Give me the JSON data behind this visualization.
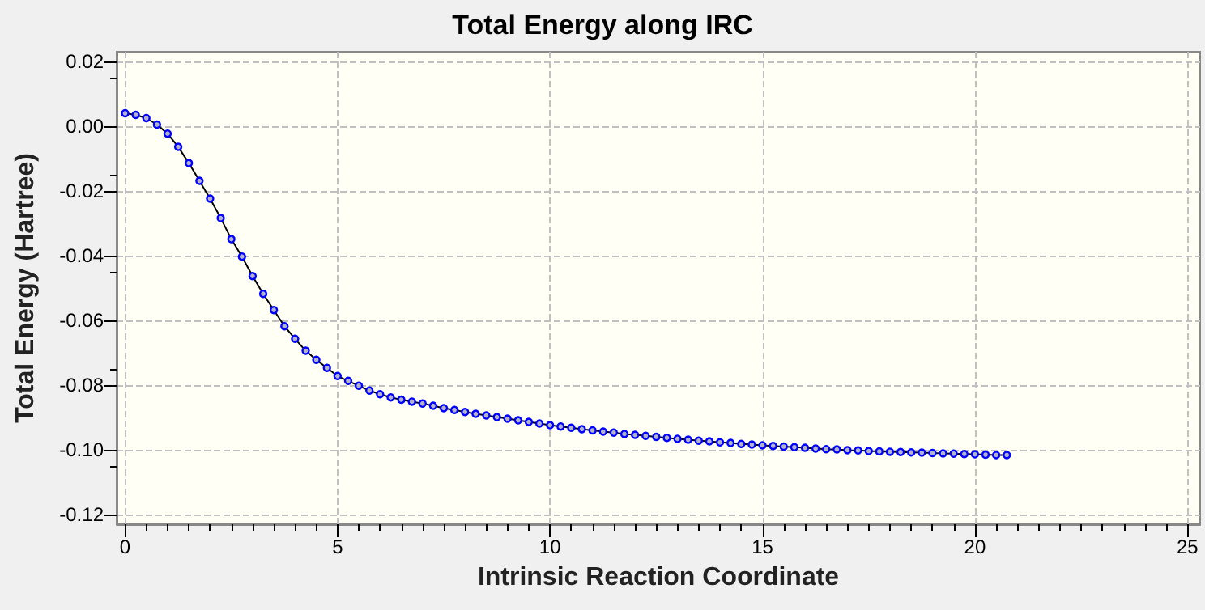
{
  "chart_data": {
    "type": "line",
    "title": "Total Energy along IRC",
    "xlabel": "Intrinsic Reaction Coordinate",
    "ylabel": "Total Energy (Hartree)",
    "x": [
      0,
      0.25,
      0.5,
      0.75,
      1,
      1.25,
      1.5,
      1.75,
      2,
      2.25,
      2.5,
      2.75,
      3,
      3.25,
      3.5,
      3.75,
      4,
      4.25,
      4.5,
      4.75,
      5,
      5.25,
      5.5,
      5.75,
      6,
      6.25,
      6.5,
      6.75,
      7,
      7.25,
      7.5,
      7.75,
      8,
      8.25,
      8.5,
      8.75,
      9,
      9.25,
      9.5,
      9.75,
      10,
      10.25,
      10.5,
      10.75,
      11,
      11.25,
      11.5,
      11.75,
      12,
      12.25,
      12.5,
      12.75,
      13,
      13.25,
      13.5,
      13.75,
      14,
      14.25,
      14.5,
      14.75,
      15,
      15.25,
      15.5,
      15.75,
      16,
      16.25,
      16.5,
      16.75,
      17,
      17.25,
      17.5,
      17.75,
      18,
      18.25,
      18.5,
      18.75,
      19,
      19.25,
      19.5,
      19.75,
      20,
      20.25,
      20.5,
      20.75
    ],
    "series": [
      {
        "color": "#0000ff",
        "values": [
          0.004,
          0.0035,
          0.0025,
          0.0005,
          -0.0023,
          -0.0064,
          -0.0114,
          -0.0169,
          -0.0224,
          -0.0284,
          -0.0349,
          -0.0403,
          -0.0463,
          -0.0518,
          -0.0568,
          -0.0618,
          -0.0657,
          -0.0694,
          -0.0722,
          -0.0747,
          -0.0772,
          -0.0787,
          -0.0802,
          -0.0817,
          -0.0828,
          -0.0838,
          -0.0845,
          -0.0851,
          -0.0857,
          -0.0864,
          -0.0871,
          -0.0877,
          -0.0883,
          -0.0889,
          -0.0894,
          -0.0899,
          -0.0904,
          -0.0909,
          -0.0914,
          -0.0919,
          -0.0924,
          -0.0928,
          -0.0932,
          -0.0936,
          -0.094,
          -0.0944,
          -0.0947,
          -0.0951,
          -0.0954,
          -0.0957,
          -0.096,
          -0.0963,
          -0.0966,
          -0.0969,
          -0.0972,
          -0.0974,
          -0.0977,
          -0.0979,
          -0.0982,
          -0.0984,
          -0.0986,
          -0.0988,
          -0.099,
          -0.0992,
          -0.0994,
          -0.0996,
          -0.0998,
          -0.0999,
          -0.1001,
          -0.1002,
          -0.1004,
          -0.1005,
          -0.1006,
          -0.1007,
          -0.1008,
          -0.1009,
          -0.101,
          -0.1011,
          -0.1012,
          -0.1013,
          -0.1014,
          -0.1015,
          -0.1016,
          -0.1016
        ]
      }
    ],
    "xlim": [
      -0.2,
      25.3
    ],
    "ylim": [
      -0.123,
      0.023
    ],
    "xticks": [
      0,
      5,
      10,
      15,
      20,
      25
    ],
    "yticks": [
      {
        "value": 0.02,
        "label": "0.02"
      },
      {
        "value": 0,
        "label": "0.00"
      },
      {
        "value": -0.02,
        "label": "-0.02"
      },
      {
        "value": -0.04,
        "label": "-0.04"
      },
      {
        "value": -0.06,
        "label": "-0.06"
      },
      {
        "value": -0.08,
        "label": "-0.08"
      },
      {
        "value": -0.1,
        "label": "-0.10"
      },
      {
        "value": -0.12,
        "label": "-0.12"
      }
    ],
    "grid": true,
    "marker": "circle",
    "line_style": "solid"
  }
}
